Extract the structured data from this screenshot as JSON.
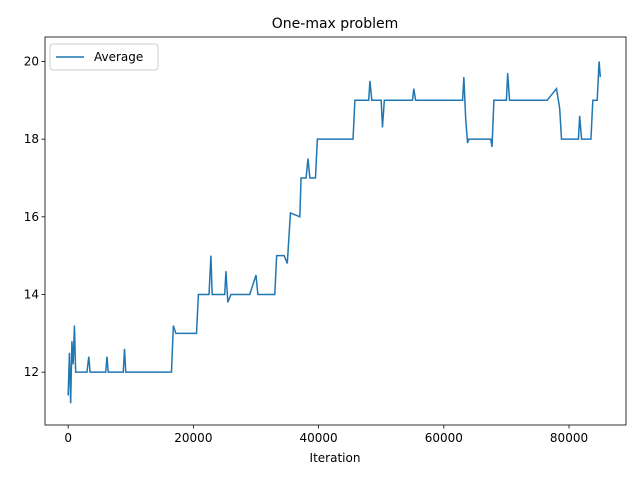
{
  "chart_data": {
    "type": "line",
    "title": "One-max problem",
    "xlabel": "Iteration",
    "x": [
      0,
      200,
      400,
      600,
      800,
      1000,
      1200,
      3000,
      3300,
      3500,
      6000,
      6200,
      6400,
      8800,
      9000,
      9200,
      16500,
      16800,
      17200,
      20500,
      20800,
      22500,
      22800,
      23000,
      25000,
      25200,
      25500,
      26000,
      29000,
      30000,
      30300,
      33000,
      33300,
      34500,
      35000,
      35500,
      37000,
      37200,
      38000,
      38300,
      38600,
      39500,
      39800,
      45500,
      45800,
      48000,
      48200,
      48500,
      50000,
      50200,
      50500,
      55000,
      55200,
      55500,
      63000,
      63200,
      63500,
      63800,
      64000,
      67500,
      67700,
      68000,
      70000,
      70200,
      70500,
      76500,
      78000,
      78500,
      78800,
      81500,
      81700,
      82000,
      83500,
      83800,
      84500,
      84800,
      85000
    ],
    "series": [
      {
        "name": "Average",
        "color": "#1f77b4",
        "values": [
          11.4,
          12.5,
          11.2,
          12.8,
          12.2,
          13.2,
          12.0,
          12.0,
          12.4,
          12.0,
          12.0,
          12.4,
          12.0,
          12.0,
          12.6,
          12.0,
          12.0,
          13.2,
          13.0,
          13.0,
          14.0,
          14.0,
          15.0,
          14.0,
          14.0,
          14.6,
          13.8,
          14.0,
          14.0,
          14.5,
          14.0,
          14.0,
          15.0,
          15.0,
          14.8,
          16.1,
          16.0,
          17.0,
          17.0,
          17.5,
          17.0,
          17.0,
          18.0,
          18.0,
          19.0,
          19.0,
          19.5,
          19.0,
          19.0,
          18.3,
          19.0,
          19.0,
          19.3,
          19.0,
          19.0,
          19.6,
          18.5,
          17.9,
          18.0,
          18.0,
          17.8,
          19.0,
          19.0,
          19.7,
          19.0,
          19.0,
          19.3,
          18.8,
          18.0,
          18.0,
          18.6,
          18.0,
          18.0,
          19.0,
          19.0,
          20.0,
          19.6
        ]
      }
    ],
    "xlim": [
      -3700,
      89100
    ],
    "ylim": [
      10.64,
      20.63
    ],
    "xticks": [
      0,
      20000,
      40000,
      60000,
      80000
    ],
    "yticks": [
      12,
      14,
      16,
      18,
      20
    ],
    "legend": "upper left"
  }
}
